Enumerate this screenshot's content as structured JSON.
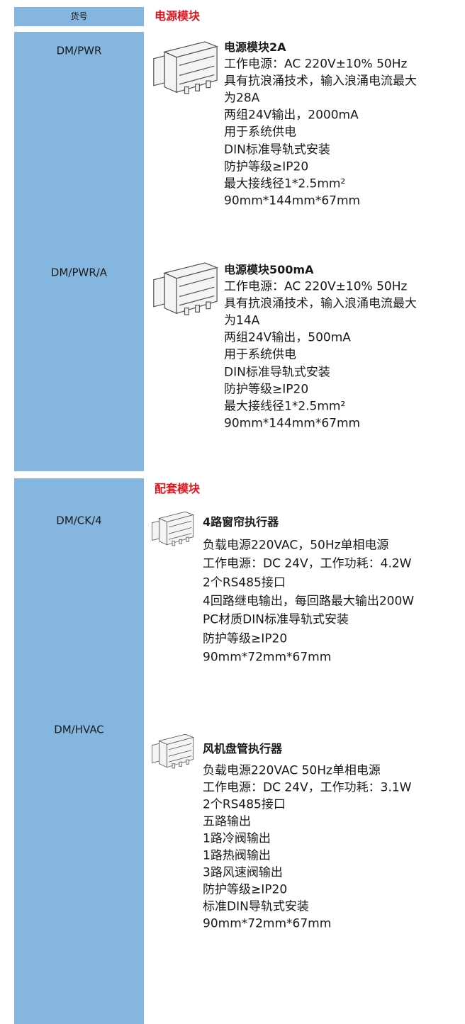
{
  "header": {
    "code_label": "货号"
  },
  "sections": [
    {
      "title": "电源模块",
      "items": [
        {
          "code": "DM/PWR",
          "name": "电源模块2A",
          "specs": [
            "工作电源：AC 220V±10% 50Hz",
            "具有抗浪涌技术，输入浪涌电流最大",
            "为28A",
            "两组24V输出，2000mA",
            "用于系统供电",
            "DIN标准导轨式安装",
            "防护等级≥IP20",
            "最大接线径1*2.5mm²",
            "90mm*144mm*67mm"
          ]
        },
        {
          "code": "DM/PWR/A",
          "name": "电源模块500mA",
          "specs": [
            "工作电源：AC 220V±10% 50Hz",
            "具有抗浪涌技术，输入浪涌电流最大",
            "为14A",
            "两组24V输出，500mA",
            "用于系统供电",
            "DIN标准导轨式安装",
            "防护等级≥IP20",
            "最大接线径1*2.5mm²",
            "90mm*144mm*67mm"
          ]
        }
      ]
    },
    {
      "title": "配套模块",
      "items": [
        {
          "code": "DM/CK/4",
          "name": "4路窗帘执行器",
          "specs": [
            "负载电源220VAC，50Hz单相电源",
            "工作电源：DC 24V，工作功耗：4.2W",
            "2个RS485接口",
            "4回路继电输出，每回路最大输出200W",
            "PC材质DIN标准导轨式安装",
            "防护等级≥IP20",
            "90mm*72mm*67mm"
          ]
        },
        {
          "code": "DM/HVAC",
          "name": "风机盘管执行器",
          "specs": [
            "负载电源220VAC 50Hz单相电源",
            "工作电源：DC 24V，工作功耗：3.1W",
            "2个RS485接口",
            "五路输出",
            "1路冷阀输出",
            "1路热阀输出",
            "3路风速阀输出",
            "防护等级≥IP20",
            "标准DIN导轨式安装",
            "90mm*72mm*67mm"
          ]
        }
      ]
    }
  ]
}
